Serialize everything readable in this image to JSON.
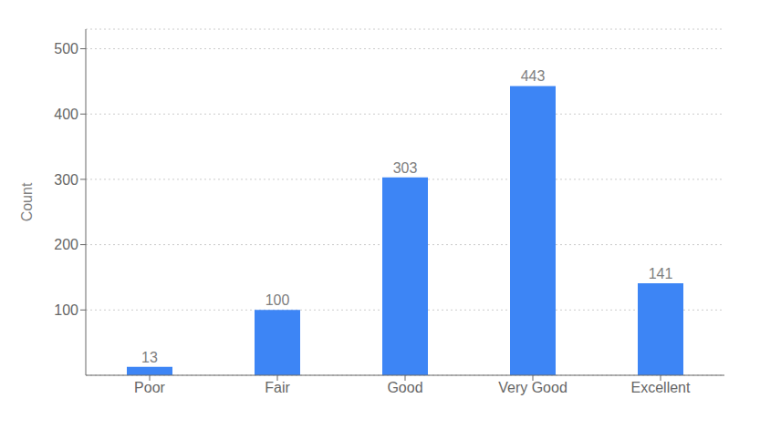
{
  "chart_data": {
    "type": "bar",
    "categories": [
      "Poor",
      "Fair",
      "Good",
      "Very Good",
      "Excellent"
    ],
    "values": [
      13,
      100,
      303,
      443,
      141
    ],
    "color": "#3d85f5",
    "ylabel": "Count",
    "ylim": [
      0,
      530
    ],
    "yticks": [
      100,
      200,
      300,
      400,
      500
    ],
    "grid": true,
    "data_labels": true
  }
}
